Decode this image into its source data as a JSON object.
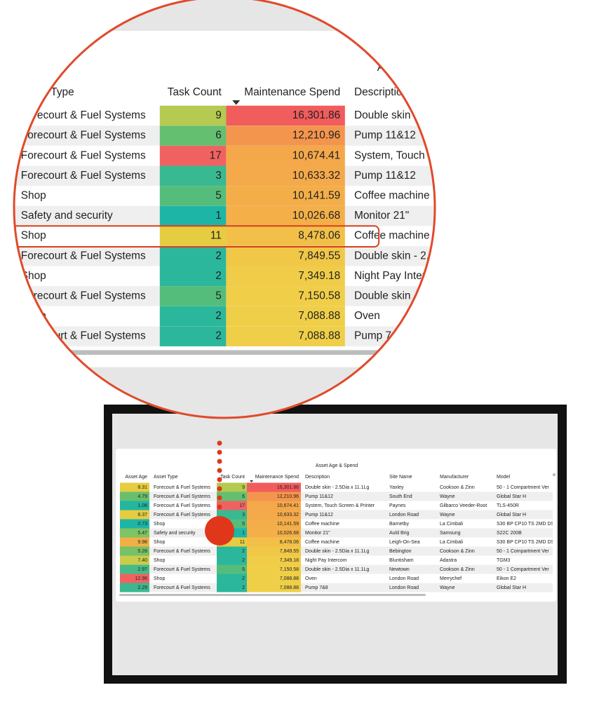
{
  "title": "Asset Age & Spend",
  "columns": [
    "Asset Age",
    "Asset Type",
    "Task Count",
    "Maintenance Spend",
    "Description",
    "Site Name",
    "Manufacturer",
    "Model"
  ],
  "rows": [
    [
      "8.31",
      "Forecourt & Fuel Systems",
      "9",
      "16,301.86",
      "Double skin - 2.5Dia x 11.1Lg",
      "Yaxley",
      "Cookson & Zinn",
      "50 - 1 Compartment Ver"
    ],
    [
      "4.79",
      "Forecourt & Fuel Systems",
      "6",
      "12,210.96",
      "Pump 11&12",
      "South End",
      "Wayne",
      "Global Star H"
    ],
    [
      "1.08",
      "Forecourt & Fuel Systems",
      "17",
      "10,674.41",
      "System, Touch Screen & Printer",
      "Paynes",
      "Gilbarco Veeder-Root",
      "TLS-450R"
    ],
    [
      "8.37",
      "Forecourt & Fuel Systems",
      "3",
      "10,633.32",
      "Pump 11&12",
      "London Road",
      "Wayne",
      "Global Star H"
    ],
    [
      "0.73",
      "Shop",
      "5",
      "10,141.59",
      "Coffee machine",
      "Barnetby",
      "La Cimbali",
      "S30 BP CP10 TS 2MD DS"
    ],
    [
      "5.47",
      "Safety and security",
      "1",
      "10,026.68",
      "Monitor 21\"",
      "Auld Brig",
      "Samsung",
      "S22C 200B"
    ],
    [
      "9.98",
      "Shop",
      "11",
      "8,478.06",
      "Coffee machine",
      "Leigh-On-Sea",
      "La Cimbali",
      "S30 BP CP10 TS 2MD DS"
    ],
    [
      "5.28",
      "Forecourt & Fuel Systems",
      "2",
      "7,849.55",
      "Double skin - 2.5Dia x 11.1Lg",
      "Bebington",
      "Cookson & Zinn",
      "50 - 1 Compartment Ver"
    ],
    [
      "7.40",
      "Shop",
      "2",
      "7,349.18",
      "Night Pay Intercom",
      "Bluntisham",
      "Adastra",
      "TGM3"
    ],
    [
      "2.97",
      "Forecourt & Fuel Systems",
      "5",
      "7,150.58",
      "Double skin - 2.5Dia x 11.1Lg",
      "Newtown",
      "Cookson & Zinn",
      "50 - 1 Compartment Ver"
    ],
    [
      "12.96",
      "Shop",
      "2",
      "7,088.88",
      "Oven",
      "London Road",
      "Merrychef",
      "Eikon E2"
    ],
    [
      "2.29",
      "Forecourt & Fuel Systems",
      "2",
      "7,088.88",
      "Pump 7&8",
      "London Road",
      "Wayne",
      "Global Star H"
    ]
  ]
}
